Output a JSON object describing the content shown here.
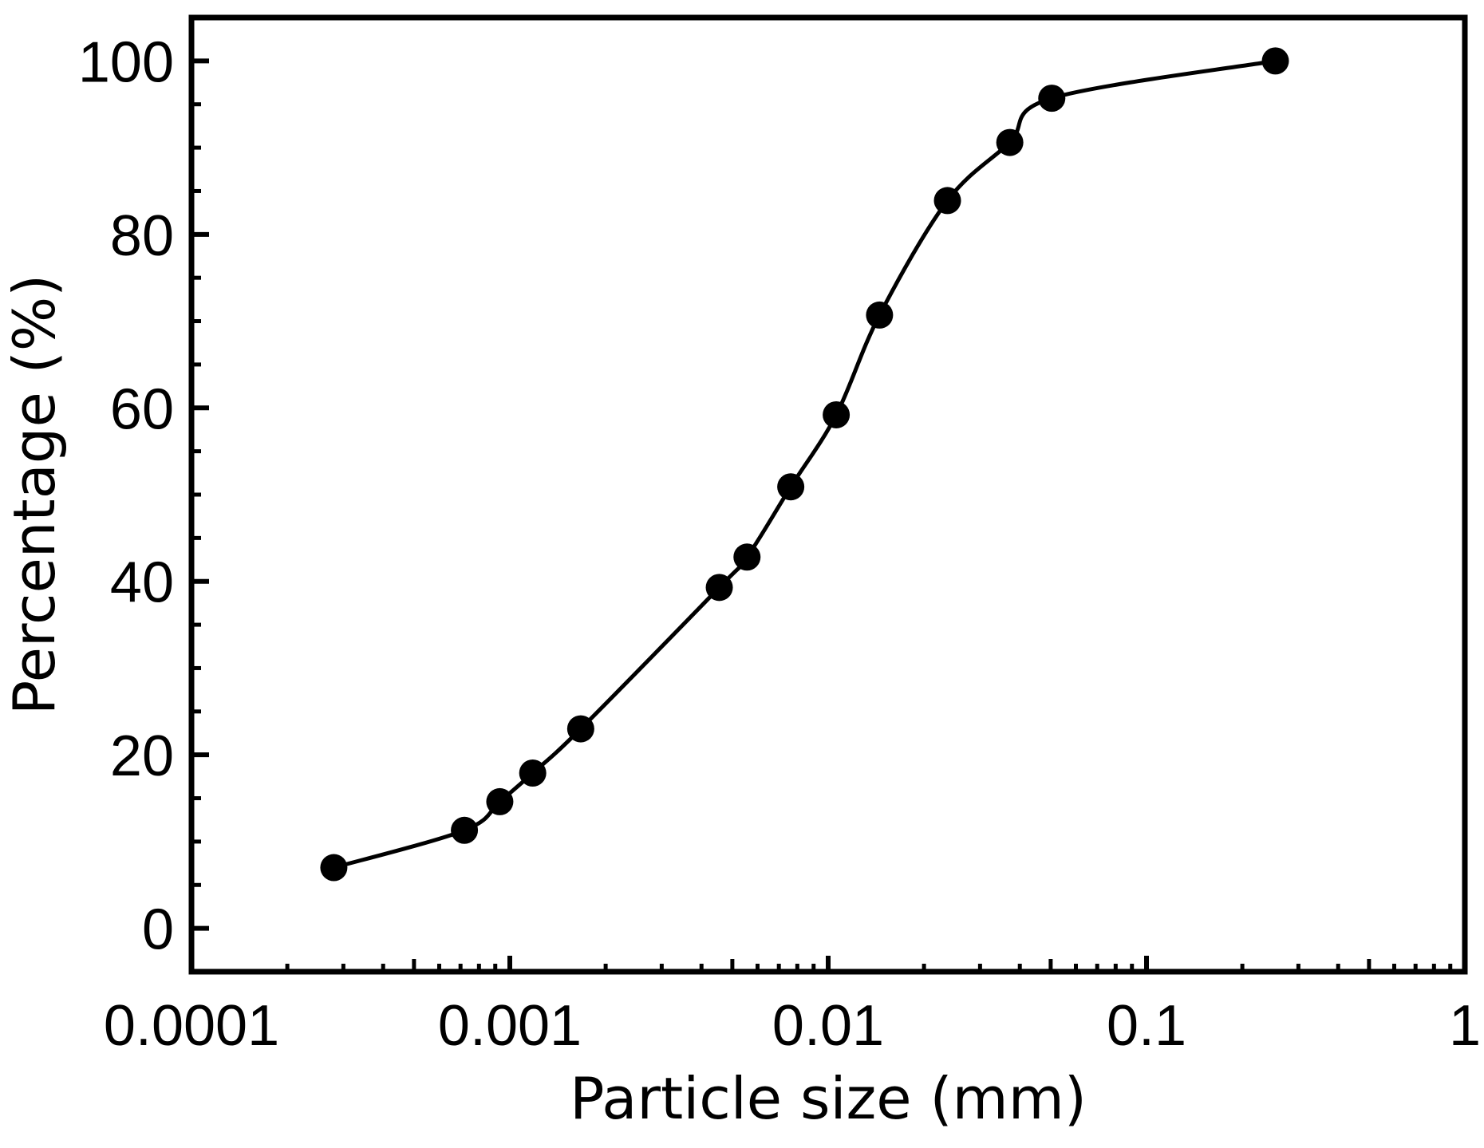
{
  "chart_data": {
    "type": "line",
    "title": "",
    "xlabel": "Particle size (mm)",
    "ylabel": "Percentage (%)",
    "x_scale": "log",
    "xlim": [
      0.0001,
      1
    ],
    "ylim": [
      -5,
      105
    ],
    "x_ticks": [
      {
        "value": 0.0001,
        "label": "0.0001"
      },
      {
        "value": 0.001,
        "label": "0.001"
      },
      {
        "value": 0.01,
        "label": "0.01"
      },
      {
        "value": 0.1,
        "label": "0.1"
      },
      {
        "value": 1,
        "label": "1"
      }
    ],
    "y_ticks": [
      {
        "value": 0,
        "label": "0"
      },
      {
        "value": 20,
        "label": "20"
      },
      {
        "value": 40,
        "label": "40"
      },
      {
        "value": 60,
        "label": "60"
      },
      {
        "value": 80,
        "label": "80"
      },
      {
        "value": 100,
        "label": "100"
      }
    ],
    "grid": false,
    "legend": "none",
    "series": [
      {
        "marker": "filled-circle",
        "line": "smooth",
        "color": "#000000",
        "x": [
          0.00028,
          0.00072,
          0.00093,
          0.00118,
          0.00167,
          0.00455,
          0.00556,
          0.00763,
          0.0106,
          0.0145,
          0.0237,
          0.0372,
          0.0504,
          0.254
        ],
        "y": [
          7.0,
          11.3,
          14.6,
          17.9,
          23.0,
          39.3,
          42.8,
          50.9,
          59.2,
          70.7,
          83.9,
          90.6,
          95.7,
          100.0
        ]
      }
    ]
  }
}
